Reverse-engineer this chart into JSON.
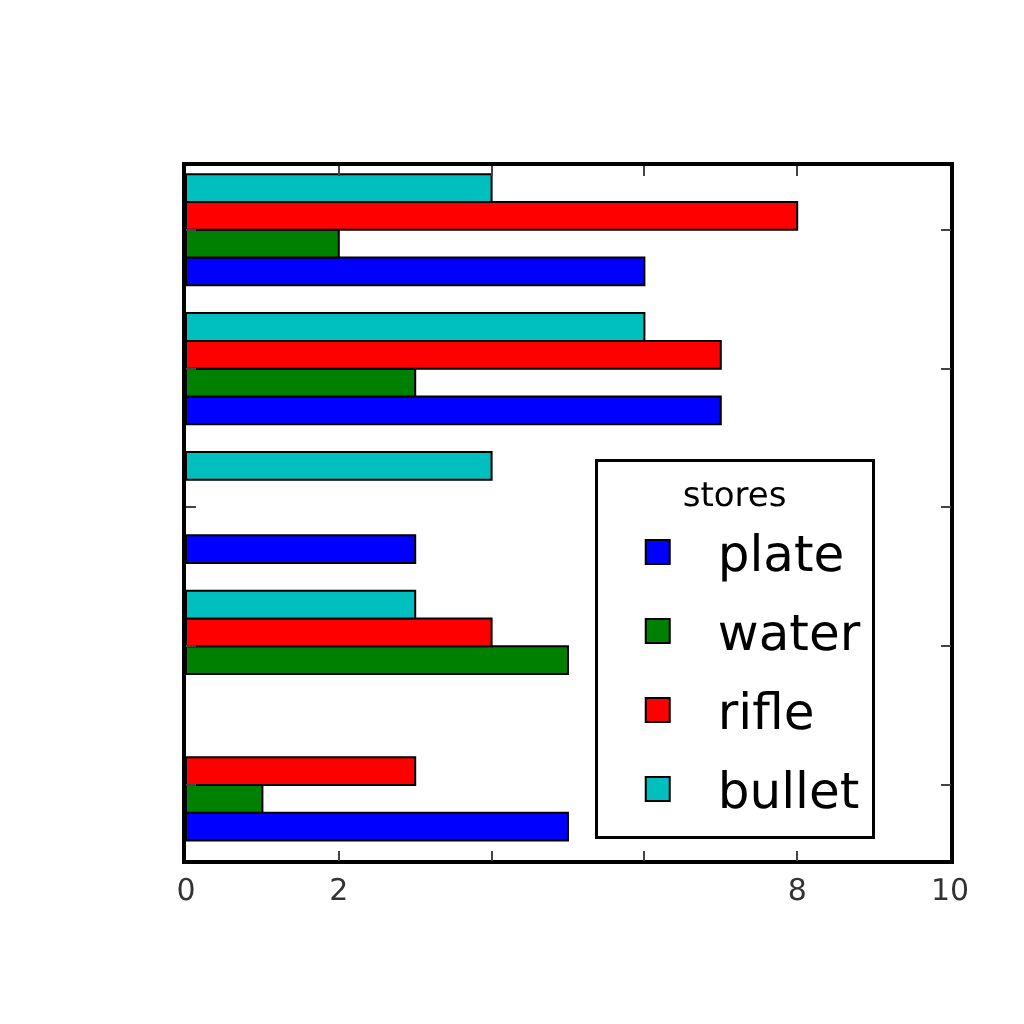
{
  "chart_data": {
    "type": "bar",
    "orientation": "horizontal",
    "categories": [
      null,
      null,
      null,
      null,
      null
    ],
    "series": [
      {
        "name": "plate",
        "color": "#0000ff",
        "values": [
          6,
          7,
          3,
          null,
          5
        ]
      },
      {
        "name": "water",
        "color": "#008000",
        "values": [
          2,
          3,
          null,
          5,
          1
        ]
      },
      {
        "name": "rifle",
        "color": "#ff0000",
        "values": [
          8,
          7,
          null,
          4,
          3
        ]
      },
      {
        "name": "bullet",
        "color": "#00bfbf",
        "values": [
          4,
          6,
          4,
          3,
          null
        ]
      }
    ],
    "xlim": [
      0,
      10
    ],
    "xticks": [
      0,
      2,
      {
        "value": 4,
        "label": null
      },
      {
        "value": 6,
        "label": null
      },
      8,
      10
    ],
    "legend_title": "stores",
    "legend": "bottom right",
    "tick_labels": "x"
  }
}
